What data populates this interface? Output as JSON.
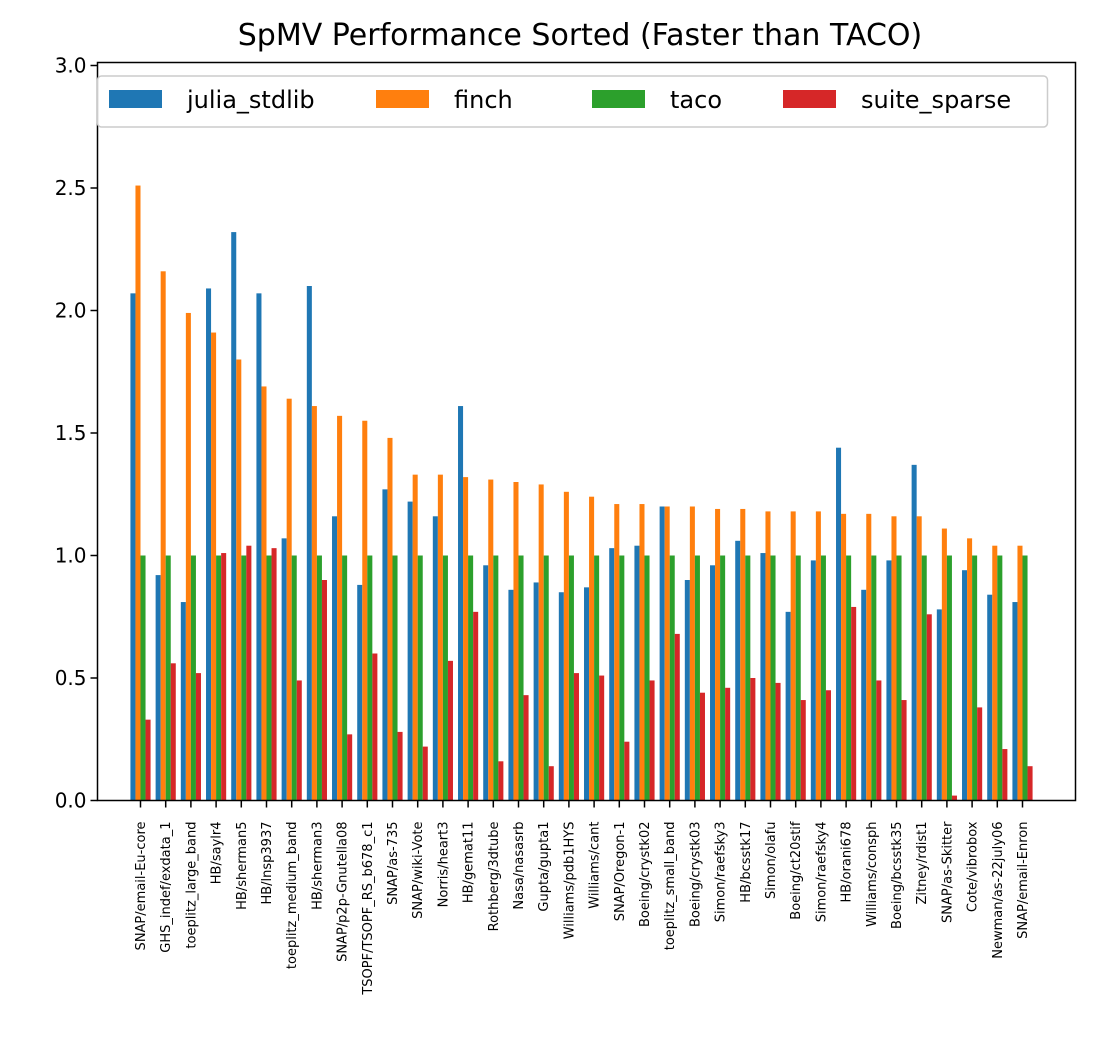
{
  "chart_data": {
    "type": "bar",
    "title": "SpMV Performance Sorted (Faster than TACO)",
    "xlabel": "",
    "ylabel": "",
    "ylim": [
      0,
      3.0
    ],
    "yticks": [
      "0.0",
      "0.5",
      "1.0",
      "1.5",
      "2.0",
      "2.5",
      "3.0"
    ],
    "grid": false,
    "legend_position": "top",
    "categories": [
      "SNAP/email-Eu-core",
      "GHS_indef/exdata_1",
      "toeplitz_large_band",
      "HB/saylr4",
      "HB/sherman5",
      "HB/lnsp3937",
      "toeplitz_medium_band",
      "HB/sherman3",
      "SNAP/p2p-Gnutella08",
      "TSOPF/TSOPF_RS_b678_c1",
      "SNAP/as-735",
      "SNAP/wiki-Vote",
      "Norris/heart3",
      "HB/gemat11",
      "Rothberg/3dtube",
      "Nasa/nasasrb",
      "Gupta/gupta1",
      "Williams/pdb1HYS",
      "Williams/cant",
      "SNAP/Oregon-1",
      "Boeing/crystk02",
      "toeplitz_small_band",
      "Boeing/crystk03",
      "Simon/raefsky3",
      "HB/bcsstk17",
      "Simon/olafu",
      "Boeing/ct20stif",
      "Simon/raefsky4",
      "HB/orani678",
      "Williams/consph",
      "Boeing/bcsstk35",
      "Zitney/rdist1",
      "SNAP/as-Skitter",
      "Cote/vibrobox",
      "Newman/as-22july06",
      "SNAP/email-Enron"
    ],
    "series": [
      {
        "name": "julia_stdlib",
        "color": "#1f77b4",
        "values": [
          2.07,
          0.92,
          0.81,
          2.09,
          2.32,
          2.07,
          1.07,
          2.1,
          1.16,
          0.88,
          1.27,
          1.22,
          1.16,
          1.61,
          0.96,
          0.86,
          0.89,
          0.85,
          0.87,
          1.03,
          1.04,
          1.2,
          0.9,
          0.96,
          1.06,
          1.01,
          0.77,
          0.98,
          1.44,
          0.86,
          0.98,
          1.37,
          0.78,
          0.94,
          0.84,
          0.81
        ]
      },
      {
        "name": "finch",
        "color": "#ff7f0e",
        "values": [
          2.51,
          2.16,
          1.99,
          1.91,
          1.8,
          1.69,
          1.64,
          1.61,
          1.57,
          1.55,
          1.48,
          1.33,
          1.33,
          1.32,
          1.31,
          1.3,
          1.29,
          1.26,
          1.24,
          1.21,
          1.21,
          1.2,
          1.2,
          1.19,
          1.19,
          1.18,
          1.18,
          1.18,
          1.17,
          1.17,
          1.16,
          1.16,
          1.11,
          1.07,
          1.04,
          1.04
        ]
      },
      {
        "name": "taco",
        "color": "#2ca02c",
        "values": [
          1.0,
          1.0,
          1.0,
          1.0,
          1.0,
          1.0,
          1.0,
          1.0,
          1.0,
          1.0,
          1.0,
          1.0,
          1.0,
          1.0,
          1.0,
          1.0,
          1.0,
          1.0,
          1.0,
          1.0,
          1.0,
          1.0,
          1.0,
          1.0,
          1.0,
          1.0,
          1.0,
          1.0,
          1.0,
          1.0,
          1.0,
          1.0,
          1.0,
          1.0,
          1.0,
          1.0
        ]
      },
      {
        "name": "suite_sparse",
        "color": "#d62728",
        "values": [
          0.33,
          0.56,
          0.52,
          1.01,
          1.04,
          1.03,
          0.49,
          0.9,
          0.27,
          0.6,
          0.28,
          0.22,
          0.57,
          0.77,
          0.16,
          0.43,
          0.14,
          0.52,
          0.51,
          0.24,
          0.49,
          0.68,
          0.44,
          0.46,
          0.5,
          0.48,
          0.41,
          0.45,
          0.79,
          0.49,
          0.41,
          0.76,
          0.02,
          0.38,
          0.21,
          0.14
        ]
      }
    ]
  }
}
